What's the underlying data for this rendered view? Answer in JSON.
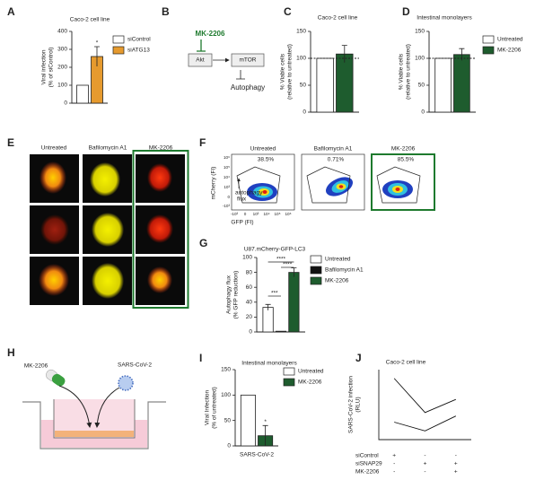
{
  "panel_labels": [
    "A",
    "B",
    "C",
    "D",
    "E",
    "F",
    "G",
    "H",
    "I",
    "J"
  ],
  "diagram_b": {
    "drug": "MK-2206",
    "nodes": [
      "Akt",
      "mTOR",
      "Autophagy"
    ]
  },
  "images_e": {
    "columns": [
      "Untreated",
      "Bafilomycin A1",
      "MK-2206"
    ]
  },
  "flow_f": {
    "columns": [
      "Untreated",
      "Bafilomycin A1",
      "MK-2206"
    ],
    "gates": [
      "38.5%",
      "0.71%",
      "85.5%"
    ],
    "y_label": "mCherry (FI)",
    "x_label": "GFP (FI)",
    "y_ticks": [
      "10⁶",
      "10⁵",
      "10⁴",
      "10³",
      "0",
      "-10³"
    ],
    "x_ticks": [
      "-10³",
      "0",
      "10³",
      "10⁴",
      "10⁵",
      "10⁶"
    ],
    "annotation": [
      "autophagy",
      "flux"
    ]
  },
  "schematic_h": {
    "drug": "MK-2206",
    "virus": "SARS-CoV-2"
  },
  "chart_data": [
    {
      "type": "bar",
      "title": "Caco-2 cell line",
      "ylabel": [
        "Viral infection",
        "(% of siControl)"
      ],
      "ylim": [
        0,
        400
      ],
      "yticks": [
        0,
        100,
        200,
        300,
        400
      ],
      "annotation": "*",
      "series": [
        {
          "name": "siControl",
          "color": "#ffffff",
          "values": [
            100
          ]
        },
        {
          "name": "siATG13",
          "color": "#e69a2e",
          "values": [
            260
          ],
          "errors": [
            55
          ]
        }
      ]
    },
    {
      "type": "bar",
      "title": "Caco-2 cell line",
      "ylabel": [
        "% Viable cells",
        "(relative to untreated)"
      ],
      "ylim": [
        0,
        150
      ],
      "yticks": [
        0,
        50,
        100,
        150
      ],
      "reference_line": 100,
      "series": [
        {
          "color": "#ffffff",
          "values": [
            100
          ]
        },
        {
          "color": "#1e5c2e",
          "values": [
            108
          ],
          "errors": [
            16
          ]
        }
      ]
    },
    {
      "type": "bar",
      "title": "Intestinal monolayers",
      "ylabel": [
        "% Viable cells",
        "(relative to untreated)"
      ],
      "ylim": [
        0,
        150
      ],
      "yticks": [
        0,
        50,
        100,
        150
      ],
      "reference_line": 100,
      "series": [
        {
          "name": "Untreated",
          "color": "#ffffff",
          "values": [
            100
          ]
        },
        {
          "name": "MK-2206",
          "color": "#1e5c2e",
          "values": [
            107
          ],
          "errors": [
            11
          ]
        }
      ]
    },
    {
      "type": "bar",
      "title": "U87.mCherry-GFP-LC3",
      "ylabel": [
        "Autophagy flux",
        "(% GFP reduction)"
      ],
      "ylim": [
        0,
        100
      ],
      "yticks": [
        0,
        20,
        40,
        60,
        80,
        100
      ],
      "significance": [
        "***",
        "****",
        "****"
      ],
      "series": [
        {
          "name": "Untreated",
          "color": "#ffffff",
          "values": [
            33
          ],
          "errors": [
            4
          ]
        },
        {
          "name": "Bafilomycin A1",
          "color": "#111111",
          "values": [
            1
          ]
        },
        {
          "name": "MK-2206",
          "color": "#1e5c2e",
          "values": [
            80
          ],
          "errors": [
            6
          ]
        }
      ]
    },
    {
      "type": "bar",
      "title": "Intestinal monolayers",
      "ylabel": [
        "Viral Infection",
        "(% of untreated)"
      ],
      "ylim": [
        0,
        150
      ],
      "yticks": [
        0,
        50,
        100,
        150
      ],
      "categories": [
        "SARS-CoV-2"
      ],
      "annotation": "*",
      "series": [
        {
          "name": "Untreated",
          "color": "#ffffff",
          "values": [
            100
          ]
        },
        {
          "name": "MK-2206",
          "color": "#1e5c2e",
          "values": [
            20
          ],
          "errors": [
            20
          ]
        }
      ]
    },
    {
      "type": "line",
      "title": "Caco-2 cell line",
      "ylabel": [
        "SARS-CoV-2 infection",
        "(RLU)"
      ],
      "ylim": [
        0,
        8000
      ],
      "series": [
        {
          "color": "#111111",
          "values": [
            7000,
            3100,
            4600
          ]
        },
        {
          "color": "#111111",
          "values": [
            2000,
            1000,
            2700
          ]
        }
      ],
      "conditions": [
        {
          "label": "siControl",
          "signs": [
            "+",
            "-",
            "-"
          ]
        },
        {
          "label": "siSNAP29",
          "signs": [
            "-",
            "+",
            "+"
          ]
        },
        {
          "label": "MK-2206",
          "signs": [
            "-",
            "-",
            "+"
          ]
        }
      ]
    }
  ]
}
